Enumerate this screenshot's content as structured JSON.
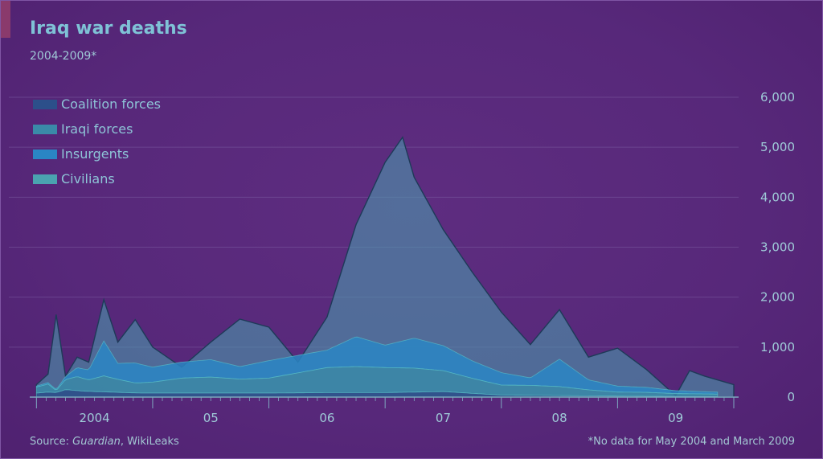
{
  "title": "Iraq war deaths",
  "subtitle": "2004-2009*",
  "source_prefix": "Source: ",
  "source_publication": "Guardian",
  "source_suffix": ", WikiLeaks",
  "footnote": "*No data for May 2004 and March 2009",
  "colors": {
    "coalition": "#2c4f8a",
    "iraqi": "#3a8aa8",
    "insurgents": "#2a86c4",
    "civilians": "#4aa3b0",
    "grid": "#7a5aa0",
    "text": "#8ec4d7"
  },
  "chart_data": {
    "type": "area",
    "stacked": true,
    "title": "Iraq war deaths",
    "subtitle": "2004-2009*",
    "ylabel": "",
    "xlabel": "",
    "ylim": [
      0,
      6000
    ],
    "yticks": [
      0,
      1000,
      2000,
      3000,
      4000,
      5000,
      6000
    ],
    "ytick_labels": [
      "0",
      "1,000",
      "2,000",
      "3,000",
      "4,000",
      "5,000",
      "6,000"
    ],
    "xlim": [
      2003.97,
      2010.0
    ],
    "xticks": [
      {
        "value": 2004.5,
        "label": "2004"
      },
      {
        "value": 2005.5,
        "label": "05"
      },
      {
        "value": 2006.5,
        "label": "06"
      },
      {
        "value": 2007.5,
        "label": "07"
      },
      {
        "value": 2008.5,
        "label": "08"
      },
      {
        "value": 2009.5,
        "label": "09"
      }
    ],
    "legend": [
      "Coalition forces",
      "Iraqi forces",
      "Insurgents",
      "Civilians"
    ],
    "series": [
      {
        "name": "Coalition forces",
        "color": "#2c4f8a",
        "points": [
          [
            2004.0,
            80
          ],
          [
            2004.1,
            100
          ],
          [
            2004.17,
            90
          ],
          [
            2004.25,
            150
          ],
          [
            2004.4,
            120
          ],
          [
            2004.5,
            110
          ],
          [
            2004.9,
            80
          ],
          [
            2005.5,
            80
          ],
          [
            2006.0,
            80
          ],
          [
            2006.5,
            90
          ],
          [
            2007.0,
            90
          ],
          [
            2007.5,
            110
          ],
          [
            2008.0,
            40
          ],
          [
            2008.5,
            30
          ],
          [
            2009.0,
            20
          ],
          [
            2009.5,
            10
          ],
          [
            2009.85,
            10
          ]
        ]
      },
      {
        "name": "Iraqi forces",
        "color": "#3a8aa8",
        "points": [
          [
            2004.0,
            120
          ],
          [
            2004.1,
            160
          ],
          [
            2004.17,
            40
          ],
          [
            2004.25,
            200
          ],
          [
            2004.35,
            280
          ],
          [
            2004.45,
            230
          ],
          [
            2004.58,
            320
          ],
          [
            2004.7,
            260
          ],
          [
            2004.85,
            200
          ],
          [
            2005.0,
            220
          ],
          [
            2005.25,
            300
          ],
          [
            2005.5,
            320
          ],
          [
            2005.75,
            280
          ],
          [
            2006.0,
            300
          ],
          [
            2006.25,
            400
          ],
          [
            2006.5,
            500
          ],
          [
            2006.75,
            520
          ],
          [
            2007.0,
            500
          ],
          [
            2007.25,
            480
          ],
          [
            2007.5,
            420
          ],
          [
            2007.75,
            300
          ],
          [
            2008.0,
            200
          ],
          [
            2008.25,
            200
          ],
          [
            2008.5,
            180
          ],
          [
            2008.75,
            120
          ],
          [
            2009.0,
            80
          ],
          [
            2009.25,
            80
          ],
          [
            2009.5,
            60
          ],
          [
            2009.85,
            50
          ]
        ]
      },
      {
        "name": "Insurgents",
        "color": "#2a86c4",
        "points": [
          [
            2004.0,
            20
          ],
          [
            2004.1,
            30
          ],
          [
            2004.17,
            20
          ],
          [
            2004.25,
            60
          ],
          [
            2004.35,
            180
          ],
          [
            2004.45,
            200
          ],
          [
            2004.58,
            700
          ],
          [
            2004.7,
            320
          ],
          [
            2004.85,
            400
          ],
          [
            2005.0,
            300
          ],
          [
            2005.25,
            320
          ],
          [
            2005.5,
            350
          ],
          [
            2005.75,
            250
          ],
          [
            2006.0,
            350
          ],
          [
            2006.25,
            350
          ],
          [
            2006.5,
            350
          ],
          [
            2006.75,
            600
          ],
          [
            2007.0,
            450
          ],
          [
            2007.25,
            600
          ],
          [
            2007.5,
            500
          ],
          [
            2007.75,
            350
          ],
          [
            2008.0,
            250
          ],
          [
            2008.25,
            150
          ],
          [
            2008.5,
            550
          ],
          [
            2008.75,
            200
          ],
          [
            2009.0,
            120
          ],
          [
            2009.25,
            100
          ],
          [
            2009.5,
            60
          ],
          [
            2009.85,
            40
          ]
        ]
      },
      {
        "name": "Civilians",
        "color": "#4aa3b0",
        "points": [
          [
            2004.0,
            20
          ],
          [
            2004.1,
            170
          ],
          [
            2004.17,
            1300
          ],
          [
            2004.25,
            10
          ],
          [
            2004.35,
            350
          ],
          [
            2004.45,
            200
          ],
          [
            2004.58,
            900
          ],
          [
            2004.7,
            400
          ],
          [
            2004.85,
            800
          ],
          [
            2005.0,
            450
          ],
          [
            2005.25,
            350
          ],
          [
            2005.5,
            600
          ],
          [
            2005.75,
            400
          ],
          [
            2006.0,
            250
          ],
          [
            2006.25,
            300
          ],
          [
            2006.5,
            600
          ],
          [
            2006.75,
            1500
          ],
          [
            2007.0,
            2400
          ],
          [
            2007.25,
            2400
          ],
          [
            2007.5,
            1800
          ],
          [
            2007.75,
            1300
          ],
          [
            2008.0,
            600
          ],
          [
            2008.25,
            550
          ],
          [
            2008.5,
            750
          ],
          [
            2008.75,
            450
          ],
          [
            2009.0,
            350
          ],
          [
            2009.25,
            300
          ],
          [
            2009.5,
            0
          ],
          [
            2009.75,
            300
          ],
          [
            2010.0,
            300
          ]
        ]
      }
    ],
    "totals": [
      [
        2004.0,
        250
      ],
      [
        2004.1,
        460
      ],
      [
        2004.17,
        1650
      ],
      [
        2004.25,
        420
      ],
      [
        2004.35,
        800
      ],
      [
        2004.45,
        700
      ],
      [
        2004.58,
        1950
      ],
      [
        2004.7,
        1100
      ],
      [
        2004.85,
        1550
      ],
      [
        2005.0,
        1000
      ],
      [
        2005.25,
        600
      ],
      [
        2005.5,
        1100
      ],
      [
        2005.75,
        1560
      ],
      [
        2006.0,
        1400
      ],
      [
        2006.25,
        700
      ],
      [
        2006.5,
        1600
      ],
      [
        2006.75,
        3450
      ],
      [
        2007.0,
        4700
      ],
      [
        2007.15,
        5200
      ],
      [
        2007.25,
        4400
      ],
      [
        2007.5,
        3350
      ],
      [
        2007.75,
        2500
      ],
      [
        2008.0,
        1700
      ],
      [
        2008.25,
        1050
      ],
      [
        2008.5,
        1750
      ],
      [
        2008.75,
        800
      ],
      [
        2009.0,
        980
      ],
      [
        2009.25,
        550
      ],
      [
        2009.5,
        30
      ],
      [
        2009.62,
        530
      ],
      [
        2009.75,
        420
      ],
      [
        2010.0,
        250
      ]
    ]
  }
}
